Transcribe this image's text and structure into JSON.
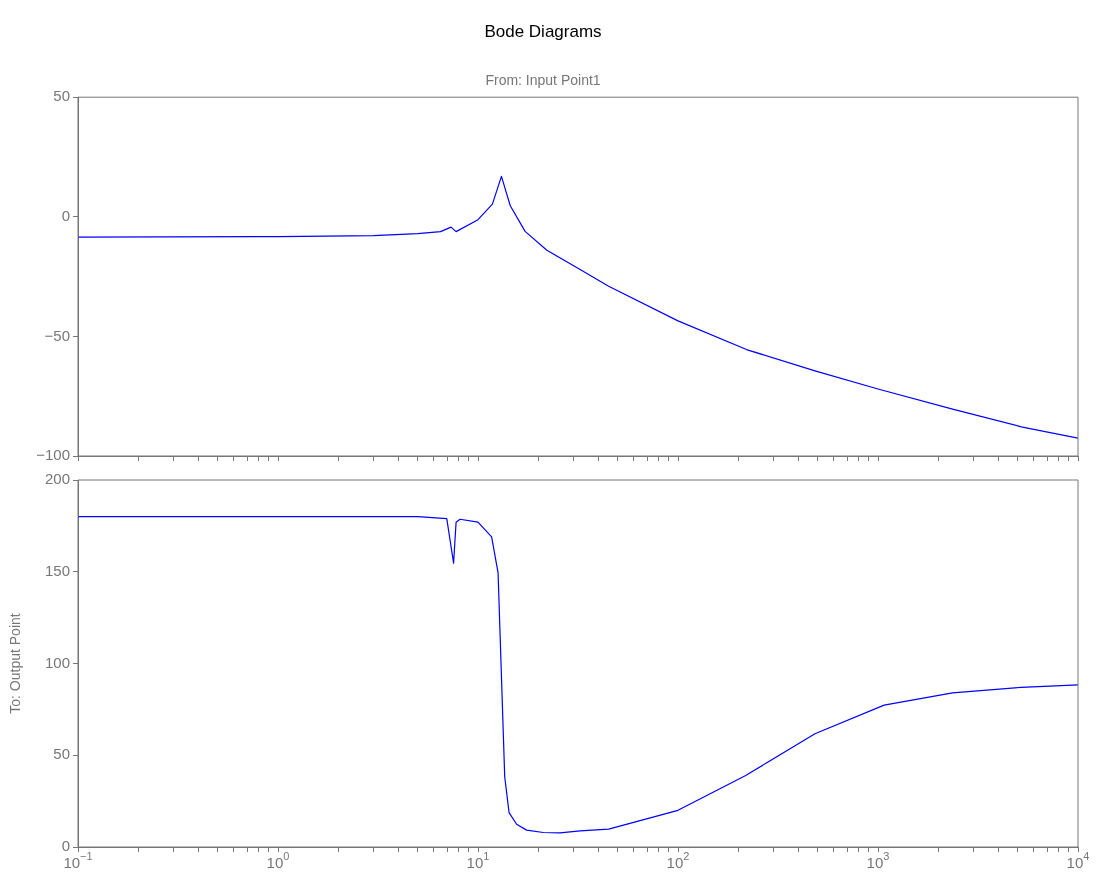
{
  "chart_data": [
    {
      "type": "line",
      "title": "Bode Diagrams",
      "subtitle": "From: Input Point1",
      "tick_labels": "y",
      "log": "x",
      "x": [
        0.1,
        1,
        3,
        5,
        6.5,
        7.33,
        7.77,
        10,
        11.8,
        13.1,
        14.5,
        17.2,
        22.1,
        32.4,
        45,
        100,
        220,
        484,
        1000,
        2360,
        5200,
        10000
      ],
      "series": [
        {
          "color": "#0000ff",
          "values": [
            -8.5,
            -8.3,
            -7.9,
            -7,
            -6.2,
            -4.3,
            -6.2,
            -1.2,
            5.3,
            16.9,
            4.6,
            -6.1,
            -14,
            -22,
            -29,
            -43.5,
            -55.5,
            -64.4,
            -72,
            -80.4,
            -87.8,
            -92.5
          ]
        }
      ],
      "xlim": [
        0.1,
        10000
      ],
      "ylim": [
        -100,
        50
      ],
      "yticks": [
        -100,
        -50,
        0,
        50
      ],
      "xticks": [
        {
          "value": 0.1,
          "label": null
        },
        {
          "value": 0.2,
          "label": null
        },
        {
          "value": 0.3,
          "label": null
        },
        {
          "value": 0.4,
          "label": null
        },
        {
          "value": 0.5,
          "label": null
        },
        {
          "value": 0.6,
          "label": null
        },
        {
          "value": 0.7,
          "label": null
        },
        {
          "value": 0.8,
          "label": null
        },
        {
          "value": 0.9,
          "label": null
        },
        {
          "value": 1,
          "label": null
        },
        {
          "value": 2,
          "label": null
        },
        {
          "value": 3,
          "label": null
        },
        {
          "value": 4,
          "label": null
        },
        {
          "value": 5,
          "label": null
        },
        {
          "value": 6,
          "label": null
        },
        {
          "value": 7,
          "label": null
        },
        {
          "value": 8,
          "label": null
        },
        {
          "value": 9,
          "label": null
        },
        {
          "value": 10,
          "label": null
        },
        {
          "value": 20,
          "label": null
        },
        {
          "value": 30,
          "label": null
        },
        {
          "value": 40,
          "label": null
        },
        {
          "value": 50,
          "label": null
        },
        {
          "value": 60,
          "label": null
        },
        {
          "value": 70,
          "label": null
        },
        {
          "value": 80,
          "label": null
        },
        {
          "value": 90,
          "label": null
        },
        {
          "value": 100,
          "label": null
        },
        {
          "value": 200,
          "label": null
        },
        {
          "value": 300,
          "label": null
        },
        {
          "value": 400,
          "label": null
        },
        {
          "value": 500,
          "label": null
        },
        {
          "value": 600,
          "label": null
        },
        {
          "value": 700,
          "label": null
        },
        {
          "value": 800,
          "label": null
        },
        {
          "value": 900,
          "label": null
        },
        {
          "value": 1000,
          "label": null
        },
        {
          "value": 2000,
          "label": null
        },
        {
          "value": 3000,
          "label": null
        },
        {
          "value": 4000,
          "label": null
        },
        {
          "value": 5000,
          "label": null
        },
        {
          "value": 6000,
          "label": null
        },
        {
          "value": 7000,
          "label": null
        },
        {
          "value": 8000,
          "label": null
        },
        {
          "value": 9000,
          "label": null
        },
        {
          "value": 10000,
          "label": null
        }
      ]
    },
    {
      "type": "line",
      "ylabel": "To: Output Point",
      "log": "x",
      "x": [
        0.1,
        1,
        5,
        6.98,
        7.55,
        7.77,
        8.13,
        10,
        11.7,
        12.6,
        13.6,
        14.3,
        15.6,
        17.5,
        21.2,
        25.7,
        32.4,
        45,
        100,
        218,
        484,
        1073,
        2360,
        5200,
        10000
      ],
      "series": [
        {
          "color": "#0000ff",
          "values": [
            180,
            180,
            180,
            179,
            154.7,
            177,
            178.6,
            177,
            169,
            149.4,
            38.3,
            18.7,
            12.4,
            9.2,
            7.9,
            7.7,
            8.8,
            9.7,
            20,
            39,
            61.7,
            77.3,
            84,
            87,
            88.3
          ]
        }
      ],
      "xlim": [
        0.1,
        10000
      ],
      "ylim": [
        0,
        200
      ],
      "yticks": [
        0,
        50,
        100,
        150,
        200
      ],
      "xticks": [
        {
          "value": 0.1,
          "label": "10$^{−1}$"
        },
        {
          "value": 0.2,
          "label": null
        },
        {
          "value": 0.3,
          "label": null
        },
        {
          "value": 0.4,
          "label": null
        },
        {
          "value": 0.5,
          "label": null
        },
        {
          "value": 0.6,
          "label": null
        },
        {
          "value": 0.7,
          "label": null
        },
        {
          "value": 0.8,
          "label": null
        },
        {
          "value": 0.9,
          "label": null
        },
        {
          "value": 1,
          "label": "10$^{0}$"
        },
        {
          "value": 2,
          "label": null
        },
        {
          "value": 3,
          "label": null
        },
        {
          "value": 4,
          "label": null
        },
        {
          "value": 5,
          "label": null
        },
        {
          "value": 6,
          "label": null
        },
        {
          "value": 7,
          "label": null
        },
        {
          "value": 8,
          "label": null
        },
        {
          "value": 9,
          "label": null
        },
        {
          "value": 10,
          "label": "10$^{1}$"
        },
        {
          "value": 20,
          "label": null
        },
        {
          "value": 30,
          "label": null
        },
        {
          "value": 40,
          "label": null
        },
        {
          "value": 50,
          "label": null
        },
        {
          "value": 60,
          "label": null
        },
        {
          "value": 70,
          "label": null
        },
        {
          "value": 80,
          "label": null
        },
        {
          "value": 90,
          "label": null
        },
        {
          "value": 100,
          "label": "10$^{2}$"
        },
        {
          "value": 200,
          "label": null
        },
        {
          "value": 300,
          "label": null
        },
        {
          "value": 400,
          "label": null
        },
        {
          "value": 500,
          "label": null
        },
        {
          "value": 600,
          "label": null
        },
        {
          "value": 700,
          "label": null
        },
        {
          "value": 800,
          "label": null
        },
        {
          "value": 900,
          "label": null
        },
        {
          "value": 1000,
          "label": "10$^{3}$"
        },
        {
          "value": 2000,
          "label": null
        },
        {
          "value": 3000,
          "label": null
        },
        {
          "value": 4000,
          "label": null
        },
        {
          "value": 5000,
          "label": null
        },
        {
          "value": 6000,
          "label": null
        },
        {
          "value": 7000,
          "label": null
        },
        {
          "value": 8000,
          "label": null
        },
        {
          "value": 9000,
          "label": null
        },
        {
          "value": 10000,
          "label": "10$^{4}$"
        }
      ]
    }
  ]
}
